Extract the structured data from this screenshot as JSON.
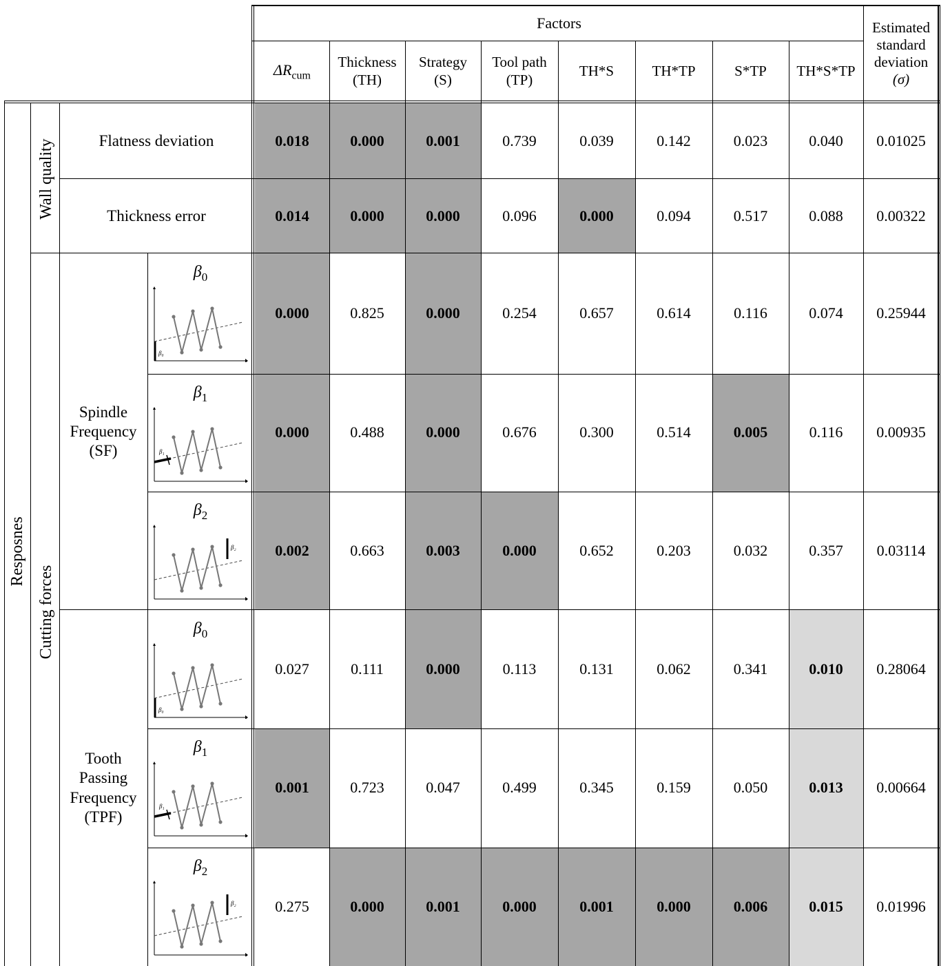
{
  "header": {
    "factors_label": "Factors",
    "delta_r": "ΔR",
    "delta_r_sub": "cum",
    "columns": [
      {
        "line1": "Thickness",
        "line2": "(TH)"
      },
      {
        "line1": "Strategy",
        "line2": "(S)"
      },
      {
        "line1": "Tool path",
        "line2": "(TP)"
      },
      {
        "line1": "TH*S",
        "line2": ""
      },
      {
        "line1": "TH*TP",
        "line2": ""
      },
      {
        "line1": "S*TP",
        "line2": ""
      },
      {
        "line1": "TH*S*TP",
        "line2": ""
      }
    ],
    "sd_lines": [
      "Estimated",
      "standard",
      "deviation",
      "(σ)"
    ]
  },
  "labels": {
    "responses": "Resposnes",
    "wall_quality": "Wall quality",
    "cutting_forces": "Cutting forces",
    "flatness": "Flatness deviation",
    "thickness_error": "Thickness error",
    "sf_lines": [
      "Spindle",
      "Frequency",
      "(SF)"
    ],
    "tpf_lines": [
      "Tooth",
      "Passing",
      "Frequency",
      "(TPF)"
    ]
  },
  "betas": [
    {
      "sym": "β",
      "sub": "0",
      "icon_label": "β₀"
    },
    {
      "sym": "β",
      "sub": "1",
      "icon_label": "β₁"
    },
    {
      "sym": "β",
      "sub": "2",
      "icon_label": "β₂"
    },
    {
      "sym": "β",
      "sub": "0",
      "icon_label": "β₀"
    },
    {
      "sym": "β",
      "sub": "1",
      "icon_label": "β₁"
    },
    {
      "sym": "β",
      "sub": "2",
      "icon_label": "β₂"
    }
  ],
  "rows": [
    {
      "values": [
        "0.018",
        "0.000",
        "0.001",
        "0.739",
        "0.039",
        "0.142",
        "0.023",
        "0.040",
        "0.01025"
      ],
      "shade": [
        "d",
        "d",
        "d",
        "",
        "",
        "",
        "",
        "",
        ""
      ]
    },
    {
      "values": [
        "0.014",
        "0.000",
        "0.000",
        "0.096",
        "0.000",
        "0.094",
        "0.517",
        "0.088",
        "0.00322"
      ],
      "shade": [
        "d",
        "d",
        "d",
        "",
        "d",
        "",
        "",
        "",
        ""
      ]
    },
    {
      "values": [
        "0.000",
        "0.825",
        "0.000",
        "0.254",
        "0.657",
        "0.614",
        "0.116",
        "0.074",
        "0.25944"
      ],
      "shade": [
        "d",
        "",
        "d",
        "",
        "",
        "",
        "",
        "",
        ""
      ]
    },
    {
      "values": [
        "0.000",
        "0.488",
        "0.000",
        "0.676",
        "0.300",
        "0.514",
        "0.005",
        "0.116",
        "0.00935"
      ],
      "shade": [
        "d",
        "",
        "d",
        "",
        "",
        "",
        "d",
        "",
        ""
      ]
    },
    {
      "values": [
        "0.002",
        "0.663",
        "0.003",
        "0.000",
        "0.652",
        "0.203",
        "0.032",
        "0.357",
        "0.03114"
      ],
      "shade": [
        "d",
        "",
        "d",
        "d",
        "",
        "",
        "",
        "",
        ""
      ]
    },
    {
      "values": [
        "0.027",
        "0.111",
        "0.000",
        "0.113",
        "0.131",
        "0.062",
        "0.341",
        "0.010",
        "0.28064"
      ],
      "shade": [
        "",
        "",
        "d",
        "",
        "",
        "",
        "",
        "l",
        ""
      ]
    },
    {
      "values": [
        "0.001",
        "0.723",
        "0.047",
        "0.499",
        "0.345",
        "0.159",
        "0.050",
        "0.013",
        "0.00664"
      ],
      "shade": [
        "d",
        "",
        "",
        "",
        "",
        "",
        "",
        "l",
        ""
      ]
    },
    {
      "values": [
        "0.275",
        "0.000",
        "0.001",
        "0.000",
        "0.001",
        "0.000",
        "0.006",
        "0.015",
        "0.01996"
      ],
      "shade": [
        "",
        "d",
        "d",
        "d",
        "d",
        "d",
        "d",
        "l",
        ""
      ]
    }
  ]
}
